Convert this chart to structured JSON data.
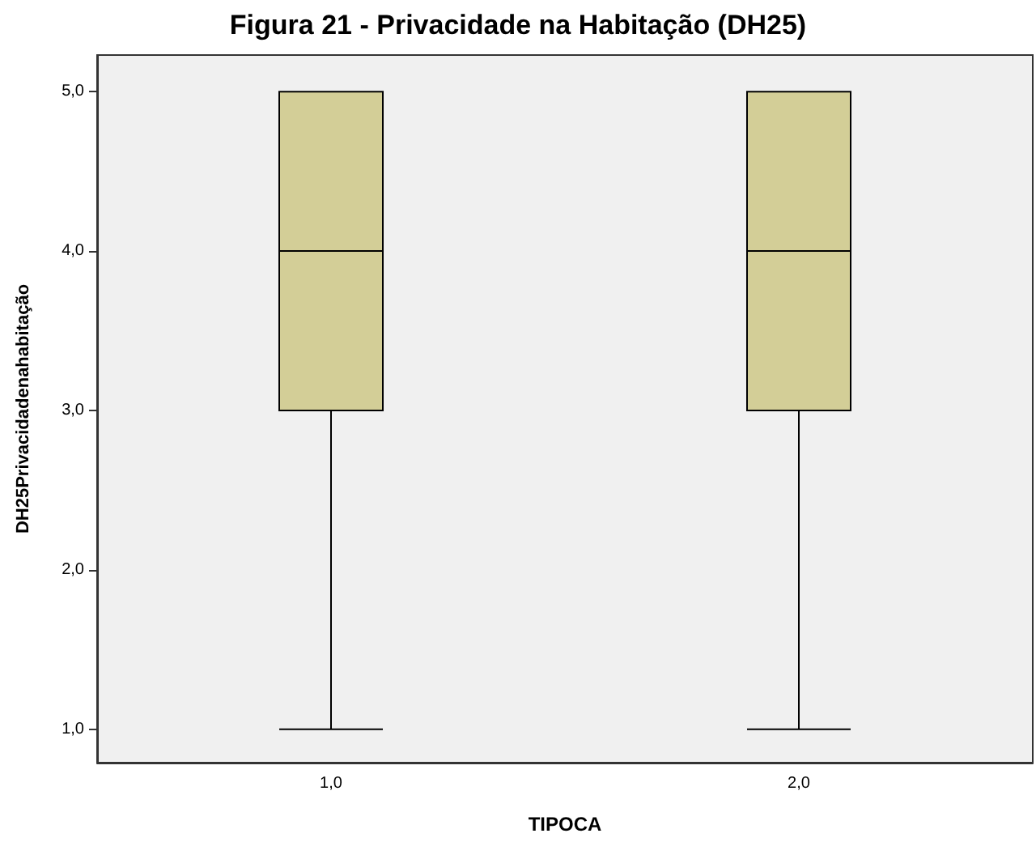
{
  "chart_data": {
    "type": "box",
    "title": "Figura 21 - Privacidade na Habitação (DH25)",
    "xlabel": "TIPOCA",
    "ylabel": "DH25Privacidadenahabitação",
    "categories": [
      "1,0",
      "2,0"
    ],
    "series": [
      {
        "color": "#d3ce97",
        "boxes": [
          {
            "low": 1,
            "q1": 3,
            "median": 4,
            "q3": 5,
            "high": 5
          },
          {
            "low": 1,
            "q1": 3,
            "median": 4,
            "q3": 5,
            "high": 5
          }
        ]
      }
    ],
    "ylim": [
      0.79,
      5.23
    ],
    "yticks": [
      {
        "value": 1,
        "label": "1,0"
      },
      {
        "value": 2,
        "label": "2,0"
      },
      {
        "value": 3,
        "label": "3,0"
      },
      {
        "value": 4,
        "label": "4,0"
      },
      {
        "value": 5,
        "label": "5,0"
      }
    ],
    "grid": false
  }
}
